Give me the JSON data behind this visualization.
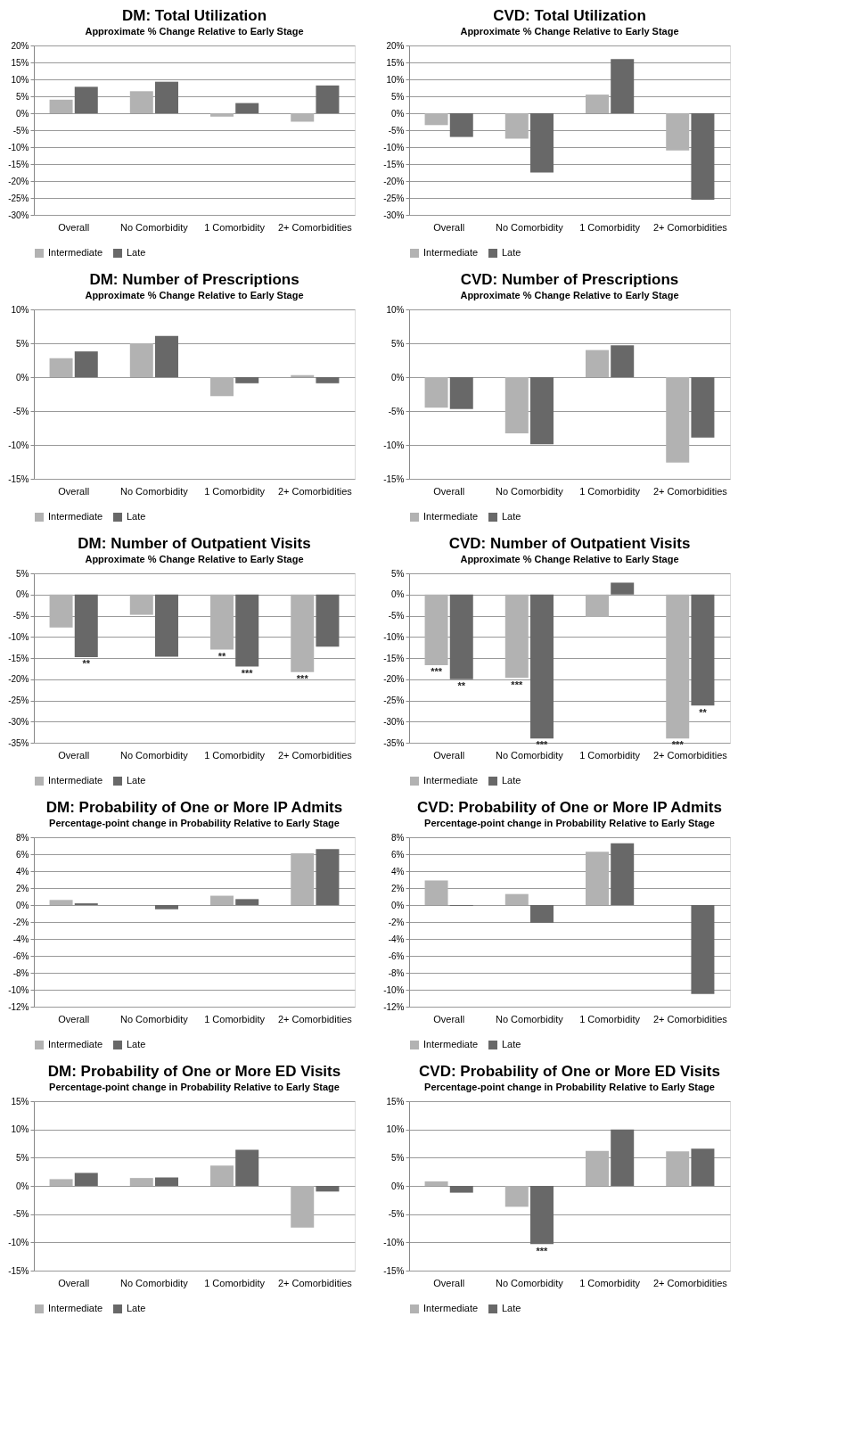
{
  "chart_data": [
    {
      "type": "bar",
      "title": "DM: Total Utilization",
      "subtitle": "Approximate % Change Relative to Early Stage",
      "categories": [
        "Overall",
        "No Comorbidity",
        "1 Comorbidity",
        "2+ Comorbidities"
      ],
      "series": [
        {
          "name": "Intermediate",
          "color": "#b2b2b2",
          "values": [
            4,
            6.5,
            -1,
            -2.5
          ]
        },
        {
          "name": "Late",
          "color": "#686868",
          "values": [
            7.8,
            9.3,
            3,
            8.2
          ]
        }
      ],
      "ylim": [
        -30,
        20
      ],
      "yticks": [
        {
          "value": -30,
          "label": "-30%"
        },
        {
          "value": -25,
          "label": "-25%"
        },
        {
          "value": -20,
          "label": "-20%"
        },
        {
          "value": -15,
          "label": "-15%"
        },
        {
          "value": -10,
          "label": "-10%"
        },
        {
          "value": -5,
          "label": "-5%"
        },
        {
          "value": 0,
          "label": "0%"
        },
        {
          "value": 5,
          "label": "5%"
        },
        {
          "value": 10,
          "label": "10%"
        },
        {
          "value": 15,
          "label": "15%"
        },
        {
          "value": 20,
          "label": "20%"
        }
      ],
      "grid": "y",
      "legend": "bottom"
    },
    {
      "type": "bar",
      "title": "CVD: Total Utilization",
      "subtitle": "Approximate % Change Relative to Early Stage",
      "categories": [
        "Overall",
        "No Comorbidity",
        "1 Comorbidity",
        "2+ Comorbidities"
      ],
      "series": [
        {
          "name": "Intermediate",
          "color": "#b2b2b2",
          "values": [
            -3.5,
            -7.5,
            5.5,
            -11
          ]
        },
        {
          "name": "Late",
          "color": "#686868",
          "values": [
            -7,
            -17.5,
            16,
            -25.5
          ]
        }
      ],
      "ylim": [
        -30,
        20
      ],
      "yticks": [
        {
          "value": -30,
          "label": "-30%"
        },
        {
          "value": -25,
          "label": "-25%"
        },
        {
          "value": -20,
          "label": "-20%"
        },
        {
          "value": -15,
          "label": "-15%"
        },
        {
          "value": -10,
          "label": "-10%"
        },
        {
          "value": -5,
          "label": "-5%"
        },
        {
          "value": 0,
          "label": "0%"
        },
        {
          "value": 5,
          "label": "5%"
        },
        {
          "value": 10,
          "label": "10%"
        },
        {
          "value": 15,
          "label": "15%"
        },
        {
          "value": 20,
          "label": "20%"
        }
      ],
      "grid": "y",
      "legend": "bottom"
    },
    {
      "type": "bar",
      "title": "DM: Number of Prescriptions",
      "subtitle": "Approximate % Change Relative to Early Stage",
      "categories": [
        "Overall",
        "No Comorbidity",
        "1 Comorbidity",
        "2+ Comorbidities"
      ],
      "series": [
        {
          "name": "Intermediate",
          "color": "#b2b2b2",
          "values": [
            2.8,
            5,
            -2.8,
            0.3
          ]
        },
        {
          "name": "Late",
          "color": "#686868",
          "values": [
            3.8,
            6.1,
            -0.9,
            -0.9
          ]
        }
      ],
      "ylim": [
        -15,
        10
      ],
      "yticks": [
        {
          "value": -15,
          "label": "-15%"
        },
        {
          "value": -10,
          "label": "-10%"
        },
        {
          "value": -5,
          "label": "-5%"
        },
        {
          "value": 0,
          "label": "0%"
        },
        {
          "value": 5,
          "label": "5%"
        },
        {
          "value": 10,
          "label": "10%"
        }
      ],
      "grid": "y",
      "legend": "bottom"
    },
    {
      "type": "bar",
      "title": "CVD: Number of Prescriptions",
      "subtitle": "Approximate % Change Relative to Early Stage",
      "categories": [
        "Overall",
        "No Comorbidity",
        "1 Comorbidity",
        "2+ Comorbidities"
      ],
      "series": [
        {
          "name": "Intermediate",
          "color": "#b2b2b2",
          "values": [
            -4.5,
            -8.3,
            4,
            -12.6
          ]
        },
        {
          "name": "Late",
          "color": "#686868",
          "values": [
            -4.7,
            -9.9,
            4.7,
            -8.9
          ]
        }
      ],
      "ylim": [
        -15,
        10
      ],
      "yticks": [
        {
          "value": -15,
          "label": "-15%"
        },
        {
          "value": -10,
          "label": "-10%"
        },
        {
          "value": -5,
          "label": "-5%"
        },
        {
          "value": 0,
          "label": "0%"
        },
        {
          "value": 5,
          "label": "5%"
        },
        {
          "value": 10,
          "label": "10%"
        }
      ],
      "grid": "y",
      "legend": "bottom"
    },
    {
      "type": "bar",
      "title": "DM: Number of Outpatient Visits",
      "subtitle": "Approximate % Change Relative to Early Stage",
      "categories": [
        "Overall",
        "No Comorbidity",
        "1 Comorbidity",
        "2+ Comorbidities"
      ],
      "series": [
        {
          "name": "Intermediate",
          "color": "#b2b2b2",
          "values": [
            -7.8,
            -4.8,
            -13,
            -18.3
          ]
        },
        {
          "name": "Late",
          "color": "#686868",
          "values": [
            -14.8,
            -14.7,
            -17,
            -12.3
          ]
        }
      ],
      "ylim": [
        -35,
        5
      ],
      "yticks": [
        {
          "value": -35,
          "label": "-35%"
        },
        {
          "value": -30,
          "label": "-30%"
        },
        {
          "value": -25,
          "label": "-25%"
        },
        {
          "value": -20,
          "label": "-20%"
        },
        {
          "value": -15,
          "label": "-15%"
        },
        {
          "value": -10,
          "label": "-10%"
        },
        {
          "value": -5,
          "label": "-5%"
        },
        {
          "value": 0,
          "label": "0%"
        },
        {
          "value": 5,
          "label": "5%"
        }
      ],
      "grid": "y",
      "legend": "bottom",
      "annotations": [
        {
          "text": "**",
          "x": "Overall",
          "y": -15.3
        },
        {
          "text": "**",
          "x": "1 Comorbidity",
          "y": -13.5
        },
        {
          "text": "***",
          "x": "1 Comorbidity",
          "y": -17.5
        },
        {
          "text": "***",
          "x": "2+ Comorbidities",
          "y": -18.8
        }
      ]
    },
    {
      "type": "bar",
      "title": "CVD: Number of Outpatient Visits",
      "subtitle": "Approximate % Change Relative to Early Stage",
      "categories": [
        "Overall",
        "No Comorbidity",
        "1 Comorbidity",
        "2+ Comorbidities"
      ],
      "series": [
        {
          "name": "Intermediate",
          "color": "#b2b2b2",
          "values": [
            -16.7,
            -19.7,
            -5.3,
            -34
          ]
        },
        {
          "name": "Late",
          "color": "#686868",
          "values": [
            -20,
            -34,
            2.8,
            -26.2
          ]
        }
      ],
      "ylim": [
        -35,
        5
      ],
      "yticks": [
        {
          "value": -35,
          "label": "-35%"
        },
        {
          "value": -30,
          "label": "-30%"
        },
        {
          "value": -25,
          "label": "-25%"
        },
        {
          "value": -20,
          "label": "-20%"
        },
        {
          "value": -15,
          "label": "-15%"
        },
        {
          "value": -10,
          "label": "-10%"
        },
        {
          "value": -5,
          "label": "-5%"
        },
        {
          "value": 0,
          "label": "0%"
        },
        {
          "value": 5,
          "label": "5%"
        }
      ],
      "grid": "y",
      "legend": "bottom",
      "annotations": [
        {
          "text": "***",
          "x": "Overall",
          "y": -17.2
        },
        {
          "text": "**",
          "x": "Overall",
          "y": -20.5
        },
        {
          "text": "***",
          "x": "No Comorbidity",
          "y": -20.2
        },
        {
          "text": "***",
          "x": "No Comorbidity",
          "y": -34.4
        },
        {
          "text": "***",
          "x": "2+ Comorbidities",
          "y": -34.4
        },
        {
          "text": "**",
          "x": "2+ Comorbidities",
          "y": -26.7
        }
      ]
    },
    {
      "type": "bar",
      "title": "DM: Probability of One or More IP Admits",
      "subtitle": "Percentage-point change in Probability Relative to Early Stage",
      "categories": [
        "Overall",
        "No Comorbidity",
        "1 Comorbidity",
        "2+ Comorbidities"
      ],
      "series": [
        {
          "name": "Intermediate",
          "color": "#b2b2b2",
          "values": [
            0.6,
            0,
            1.1,
            6.1
          ]
        },
        {
          "name": "Late",
          "color": "#686868",
          "values": [
            0.2,
            -0.5,
            0.7,
            6.6
          ]
        }
      ],
      "ylim": [
        -12,
        8
      ],
      "yticks": [
        {
          "value": -12,
          "label": "-12%"
        },
        {
          "value": -10,
          "label": "-10%"
        },
        {
          "value": -8,
          "label": "-8%"
        },
        {
          "value": -6,
          "label": "-6%"
        },
        {
          "value": -4,
          "label": "-4%"
        },
        {
          "value": -2,
          "label": "-2%"
        },
        {
          "value": 0,
          "label": "0%"
        },
        {
          "value": 2,
          "label": "2%"
        },
        {
          "value": 4,
          "label": "4%"
        },
        {
          "value": 6,
          "label": "6%"
        },
        {
          "value": 8,
          "label": "8%"
        }
      ],
      "grid": "y",
      "legend": "bottom"
    },
    {
      "type": "bar",
      "title": "CVD: Probability of One or More IP Admits",
      "subtitle": "Percentage-point change in Probability Relative to Early Stage",
      "categories": [
        "Overall",
        "No Comorbidity",
        "1 Comorbidity",
        "2+ Comorbidities"
      ],
      "series": [
        {
          "name": "Intermediate",
          "color": "#b2b2b2",
          "values": [
            2.9,
            1.3,
            6.3,
            null
          ]
        },
        {
          "name": "Late",
          "color": "#686868",
          "values": [
            -0.1,
            -2.1,
            7.3,
            -10.5
          ]
        }
      ],
      "ylim": [
        -12,
        8
      ],
      "yticks": [
        {
          "value": -12,
          "label": "-12%"
        },
        {
          "value": -10,
          "label": "-10%"
        },
        {
          "value": -8,
          "label": "-8%"
        },
        {
          "value": -6,
          "label": "-6%"
        },
        {
          "value": -4,
          "label": "-4%"
        },
        {
          "value": -2,
          "label": "-2%"
        },
        {
          "value": 0,
          "label": "0%"
        },
        {
          "value": 2,
          "label": "2%"
        },
        {
          "value": 4,
          "label": "4%"
        },
        {
          "value": 6,
          "label": "6%"
        },
        {
          "value": 8,
          "label": "8%"
        }
      ],
      "grid": "y",
      "legend": "bottom"
    },
    {
      "type": "bar",
      "title": "DM: Probability of One or More ED Visits",
      "subtitle": "Percentage-point change in Probability Relative to Early Stage",
      "categories": [
        "Overall",
        "No Comorbidity",
        "1 Comorbidity",
        "2+ Comorbidities"
      ],
      "series": [
        {
          "name": "Intermediate",
          "color": "#b2b2b2",
          "values": [
            1.2,
            1.4,
            3.6,
            -7.4
          ]
        },
        {
          "name": "Late",
          "color": "#686868",
          "values": [
            2.3,
            1.5,
            6.4,
            -1
          ]
        }
      ],
      "ylim": [
        -15,
        15
      ],
      "yticks": [
        {
          "value": -15,
          "label": "-15%"
        },
        {
          "value": -10,
          "label": "-10%"
        },
        {
          "value": -5,
          "label": "-5%"
        },
        {
          "value": 0,
          "label": "0%"
        },
        {
          "value": 5,
          "label": "5%"
        },
        {
          "value": 10,
          "label": "10%"
        },
        {
          "value": 15,
          "label": "15%"
        }
      ],
      "grid": "y",
      "legend": "bottom"
    },
    {
      "type": "bar",
      "title": "CVD: Probability of One or More ED Visits",
      "subtitle": "Percentage-point change in Probability Relative to Early Stage",
      "categories": [
        "Overall",
        "No Comorbidity",
        "1 Comorbidity",
        "2+ Comorbidities"
      ],
      "series": [
        {
          "name": "Intermediate",
          "color": "#b2b2b2",
          "values": [
            0.8,
            -3.7,
            6.2,
            6.1
          ]
        },
        {
          "name": "Late",
          "color": "#686868",
          "values": [
            -1.2,
            -10.3,
            10,
            6.6
          ]
        }
      ],
      "ylim": [
        -15,
        15
      ],
      "yticks": [
        {
          "value": -15,
          "label": "-15%"
        },
        {
          "value": -10,
          "label": "-10%"
        },
        {
          "value": -5,
          "label": "-5%"
        },
        {
          "value": 0,
          "label": "0%"
        },
        {
          "value": 5,
          "label": "5%"
        },
        {
          "value": 10,
          "label": "10%"
        },
        {
          "value": 15,
          "label": "15%"
        }
      ],
      "grid": "y",
      "legend": "bottom",
      "annotations": [
        {
          "text": "***",
          "x": "No Comorbidity",
          "y": -10.8
        }
      ]
    }
  ]
}
